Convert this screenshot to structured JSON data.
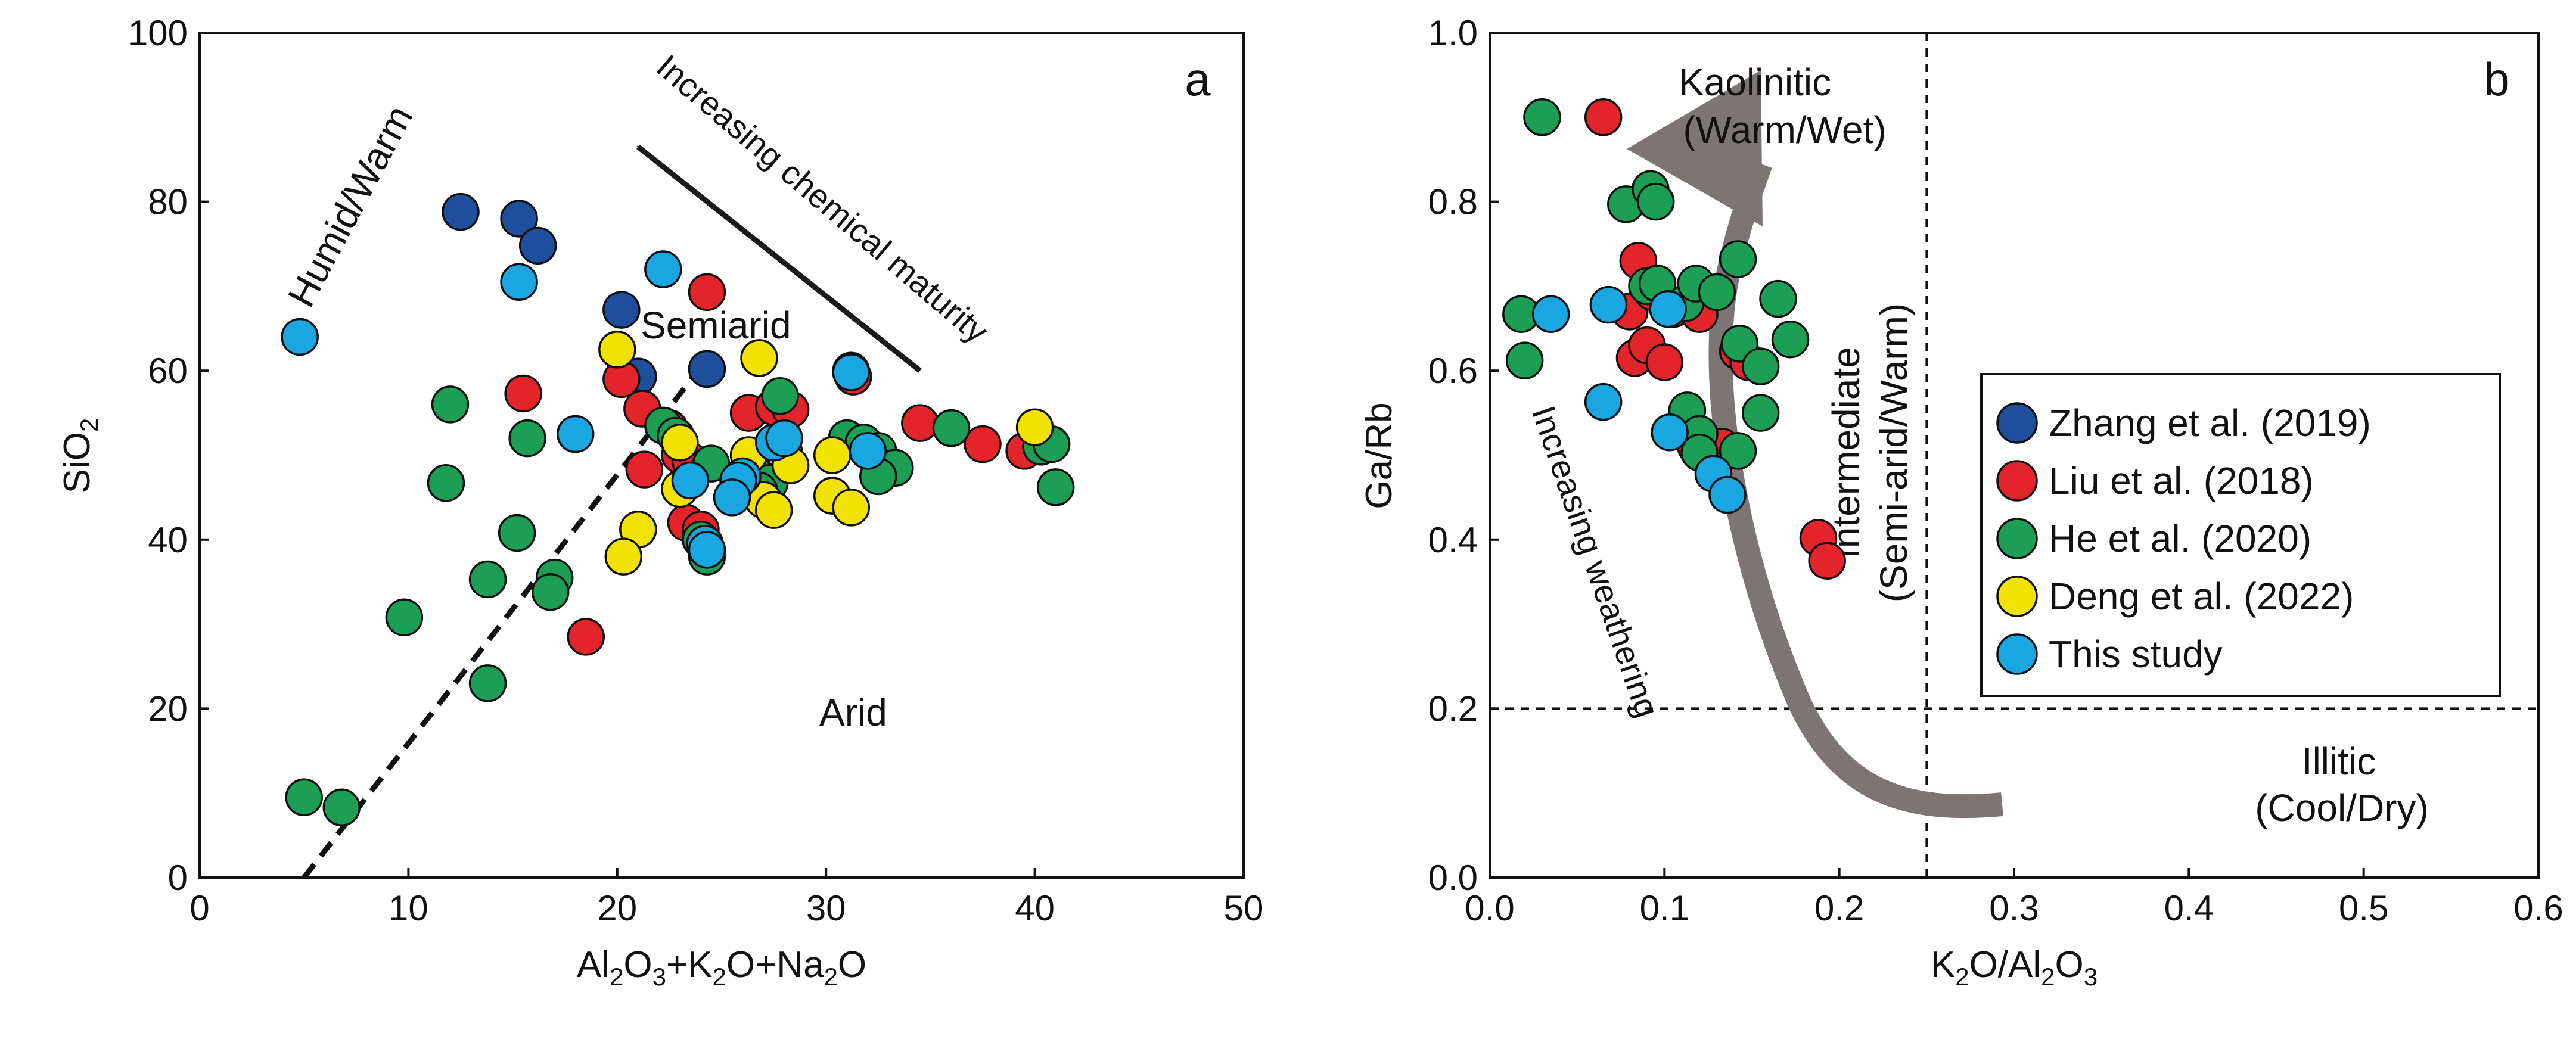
{
  "chart_data": [
    {
      "panel": "a",
      "type": "scatter",
      "xlabel": "Al2O3+K2O+Na2O",
      "ylabel": "SiO2",
      "xlim": [
        0,
        50
      ],
      "ylim": [
        0,
        100
      ],
      "xticks": [
        0,
        10,
        20,
        30,
        40,
        50
      ],
      "yticks": [
        0,
        20,
        40,
        60,
        80,
        100
      ],
      "annotations": {
        "humid": "Humid/Warm",
        "semiarid": "Semiarid",
        "arid": "Arid",
        "maturity": "Increasing chemical maturity"
      },
      "boundary_line": [
        [
          5,
          0
        ],
        [
          24.5,
          62
        ]
      ],
      "maturity_arrow": [
        [
          34.5,
          60
        ],
        [
          21,
          86.5
        ]
      ],
      "series": [
        {
          "name": "Zhang et al. (2019)",
          "color": "#1f4e9c",
          "points": [
            [
              12.5,
              78.8
            ],
            [
              15.3,
              78
            ],
            [
              16.2,
              74.8
            ],
            [
              20.2,
              67.2
            ],
            [
              21,
              59.3
            ],
            [
              24.3,
              60.2
            ],
            [
              31.2,
              60
            ]
          ]
        },
        {
          "name": "Liu et al. (2018)",
          "color": "#e3242b",
          "points": [
            [
              24.3,
              69.3
            ],
            [
              20.2,
              59
            ],
            [
              15.5,
              57.3
            ],
            [
              21.2,
              55.5
            ],
            [
              22.5,
              53.2
            ],
            [
              26.3,
              55
            ],
            [
              27.5,
              55.7
            ],
            [
              28.3,
              55.4
            ],
            [
              31.3,
              59.3
            ],
            [
              34.5,
              53.8
            ],
            [
              37.5,
              51.3
            ],
            [
              39.5,
              50.5
            ],
            [
              23,
              50
            ],
            [
              23.5,
              49.3
            ],
            [
              27.5,
              51
            ],
            [
              21.3,
              48.3
            ],
            [
              23.3,
              42
            ],
            [
              24,
              41.2
            ],
            [
              18.5,
              28.5
            ]
          ]
        },
        {
          "name": "He et al. (2020)",
          "color": "#1c9f55",
          "points": [
            [
              12,
              56
            ],
            [
              15.7,
              52
            ],
            [
              22.2,
              53.5
            ],
            [
              22.8,
              52.3
            ],
            [
              24.5,
              49
            ],
            [
              26.5,
              48
            ],
            [
              27.8,
              57
            ],
            [
              31,
              52
            ],
            [
              31.8,
              51.5
            ],
            [
              32.5,
              50.5
            ],
            [
              36,
              53.2
            ],
            [
              40.3,
              51
            ],
            [
              40.8,
              51.3
            ],
            [
              41,
              46.2
            ],
            [
              33.3,
              48.5
            ],
            [
              32.5,
              47.5
            ],
            [
              27.3,
              46.7
            ],
            [
              26.8,
              45.8
            ],
            [
              24,
              40
            ],
            [
              24.3,
              38
            ],
            [
              11.8,
              46.7
            ],
            [
              15.2,
              40.8
            ],
            [
              13.8,
              35.3
            ],
            [
              17,
              35.5
            ],
            [
              16.8,
              33.8
            ],
            [
              9.8,
              30.8
            ],
            [
              13.8,
              23
            ],
            [
              5,
              9.5
            ],
            [
              6.8,
              8.3
            ]
          ]
        },
        {
          "name": "Deng et al. (2022)",
          "color": "#f2e200",
          "points": [
            [
              20,
              62.5
            ],
            [
              26.8,
              61.5
            ],
            [
              23,
              51.5
            ],
            [
              26.3,
              50
            ],
            [
              28,
              50.3
            ],
            [
              30.3,
              50
            ],
            [
              40,
              53.3
            ],
            [
              27,
              44.7
            ],
            [
              23,
              46
            ],
            [
              30.3,
              45.2
            ],
            [
              31.2,
              43.8
            ],
            [
              28.3,
              48.8
            ],
            [
              27.5,
              43.5
            ],
            [
              21,
              41.2
            ],
            [
              20.3,
              38
            ]
          ]
        },
        {
          "name": "This study",
          "color": "#1aa6e0",
          "points": [
            [
              4.8,
              64
            ],
            [
              15.3,
              70.5
            ],
            [
              22.2,
              72
            ],
            [
              31.2,
              59.8
            ],
            [
              18,
              52.5
            ],
            [
              27.5,
              51.5
            ],
            [
              28,
              52
            ],
            [
              32,
              50.5
            ],
            [
              26,
              47.5
            ],
            [
              25.8,
              47
            ],
            [
              23.5,
              47
            ],
            [
              25.5,
              45
            ],
            [
              24.2,
              39.5
            ],
            [
              24.3,
              38.8
            ]
          ]
        }
      ]
    },
    {
      "panel": "b",
      "type": "scatter",
      "xlabel": "K2O/Al2O3",
      "ylabel": "Ga/Rb",
      "xlim": [
        0.0,
        0.6
      ],
      "ylim": [
        0.0,
        1.0
      ],
      "xticks": [
        0.0,
        0.1,
        0.2,
        0.3,
        0.4,
        0.5,
        0.6
      ],
      "yticks": [
        0.0,
        0.2,
        0.4,
        0.6,
        0.8,
        1.0
      ],
      "annotations": {
        "kaolinitic": "Kaolinitic",
        "kaolinitic_sub": "(Warm/Wet)",
        "intermediate": "Intermediate",
        "intermediate_sub": "(Semi-arid/Warm)",
        "illitic": "Illitic",
        "illitic_sub": "(Cool/Dry)",
        "weathering": "Increasing weathering"
      },
      "divider_x": 0.25,
      "divider_y": 0.2,
      "legend": [
        {
          "label": "Zhang et al. (2019)",
          "color": "#1f4e9c"
        },
        {
          "label": "Liu et al. (2018)",
          "color": "#e3242b"
        },
        {
          "label": "He et al. (2020)",
          "color": "#1c9f55"
        },
        {
          "label": "Deng et al. (2022)",
          "color": "#f2e200"
        },
        {
          "label": "This study",
          "color": "#1aa6e0"
        }
      ],
      "series": [
        {
          "name": "Liu et al. (2018)",
          "color": "#e3242b",
          "points": [
            [
              0.065,
              0.9
            ],
            [
              0.085,
              0.73
            ],
            [
              0.08,
              0.67
            ],
            [
              0.093,
              0.693
            ],
            [
              0.083,
              0.615
            ],
            [
              0.09,
              0.63
            ],
            [
              0.1,
              0.61
            ],
            [
              0.105,
              0.673
            ],
            [
              0.12,
              0.667
            ],
            [
              0.142,
              0.623
            ],
            [
              0.148,
              0.61
            ],
            [
              0.118,
              0.51
            ],
            [
              0.133,
              0.51
            ],
            [
              0.188,
              0.402
            ],
            [
              0.193,
              0.375
            ]
          ]
        },
        {
          "name": "He et al. (2020)",
          "color": "#1c9f55",
          "points": [
            [
              0.03,
              0.9
            ],
            [
              0.078,
              0.797
            ],
            [
              0.092,
              0.815
            ],
            [
              0.095,
              0.8
            ],
            [
              0.018,
              0.667
            ],
            [
              0.02,
              0.612
            ],
            [
              0.09,
              0.7
            ],
            [
              0.096,
              0.703
            ],
            [
              0.112,
              0.68
            ],
            [
              0.118,
              0.703
            ],
            [
              0.13,
              0.693
            ],
            [
              0.142,
              0.732
            ],
            [
              0.165,
              0.685
            ],
            [
              0.172,
              0.637
            ],
            [
              0.143,
              0.632
            ],
            [
              0.155,
              0.605
            ],
            [
              0.113,
              0.553
            ],
            [
              0.12,
              0.525
            ],
            [
              0.155,
              0.55
            ],
            [
              0.142,
              0.505
            ],
            [
              0.12,
              0.503
            ]
          ]
        },
        {
          "name": "This study",
          "color": "#1aa6e0",
          "points": [
            [
              0.035,
              0.667
            ],
            [
              0.068,
              0.678
            ],
            [
              0.102,
              0.673
            ],
            [
              0.065,
              0.563
            ],
            [
              0.103,
              0.527
            ],
            [
              0.128,
              0.478
            ],
            [
              0.136,
              0.453
            ]
          ]
        }
      ]
    }
  ]
}
